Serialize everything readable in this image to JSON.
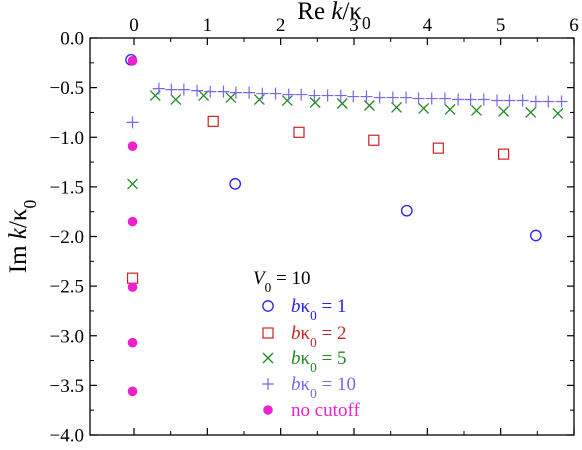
{
  "chart_data": {
    "type": "scatter",
    "xlabel": "Re k/κ0",
    "ylabel": "Im k/κ0",
    "xlim": [
      -0.6,
      6.0
    ],
    "ylim": [
      -4.0,
      0.0
    ],
    "x_ticks": [
      "0",
      "1",
      "2",
      "3",
      "4",
      "5",
      "6"
    ],
    "y_ticks": [
      "0.0",
      "−0.5",
      "−1.0",
      "−1.5",
      "−2.0",
      "−2.5",
      "−3.0",
      "−3.5",
      "−4.0"
    ],
    "x_tick_values": [
      0,
      1,
      2,
      3,
      4,
      5,
      6
    ],
    "y_tick_values": [
      0.0,
      -0.5,
      -1.0,
      -1.5,
      -2.0,
      -2.5,
      -3.0,
      -3.5,
      -4.0
    ],
    "legend_title": "V0 = 10",
    "legend_position": "lower-center",
    "grid": false,
    "series": [
      {
        "name": "bκ0 = 1",
        "marker": "circle-open",
        "color": "#2222ee",
        "x": [
          -0.04,
          1.38,
          3.72,
          5.48
        ],
        "y": [
          -0.22,
          -1.47,
          -1.74,
          -1.99
        ]
      },
      {
        "name": "bκ0 = 2",
        "marker": "square-open",
        "color": "#cc2222",
        "x": [
          -0.02,
          1.08,
          2.25,
          3.27,
          4.15,
          5.04
        ],
        "y": [
          -2.42,
          -0.84,
          -0.95,
          -1.03,
          -1.11,
          -1.17
        ]
      },
      {
        "name": "bκ0 = 5",
        "marker": "x",
        "color": "#228822",
        "x": [
          -0.02,
          0.29,
          0.57,
          0.95,
          1.32,
          1.71,
          2.09,
          2.47,
          2.84,
          3.21,
          3.58,
          3.95,
          4.31,
          4.67,
          5.04,
          5.41,
          5.78
        ],
        "y": [
          -1.47,
          -0.58,
          -0.62,
          -0.58,
          -0.6,
          -0.62,
          -0.63,
          -0.65,
          -0.66,
          -0.68,
          -0.7,
          -0.71,
          -0.72,
          -0.73,
          -0.74,
          -0.75,
          -0.76
        ]
      },
      {
        "name": "bκ0 = 10",
        "marker": "plus",
        "color": "#7766ee",
        "x": [
          -0.02,
          0.34,
          0.51,
          0.68,
          0.86,
          1.04,
          1.22,
          1.39,
          1.57,
          1.75,
          1.93,
          2.11,
          2.28,
          2.46,
          2.64,
          2.82,
          2.99,
          3.17,
          3.35,
          3.53,
          3.71,
          3.88,
          4.06,
          4.24,
          4.42,
          4.59,
          4.77,
          4.95,
          5.12,
          5.3,
          5.48,
          5.65,
          5.83
        ],
        "y": [
          -0.85,
          -0.51,
          -0.52,
          -0.52,
          -0.53,
          -0.54,
          -0.54,
          -0.55,
          -0.55,
          -0.56,
          -0.56,
          -0.57,
          -0.57,
          -0.58,
          -0.58,
          -0.58,
          -0.59,
          -0.59,
          -0.6,
          -0.6,
          -0.6,
          -0.61,
          -0.61,
          -0.61,
          -0.62,
          -0.62,
          -0.62,
          -0.63,
          -0.63,
          -0.63,
          -0.64,
          -0.64,
          -0.64
        ]
      },
      {
        "name": "no cutoff",
        "marker": "circle-filled",
        "color": "#ee22cc",
        "x": [
          -0.02,
          -0.02,
          -0.02,
          -0.02,
          -0.02,
          -0.02
        ],
        "y": [
          -0.23,
          -1.09,
          -1.85,
          -2.51,
          -3.07,
          -3.56
        ]
      }
    ]
  }
}
